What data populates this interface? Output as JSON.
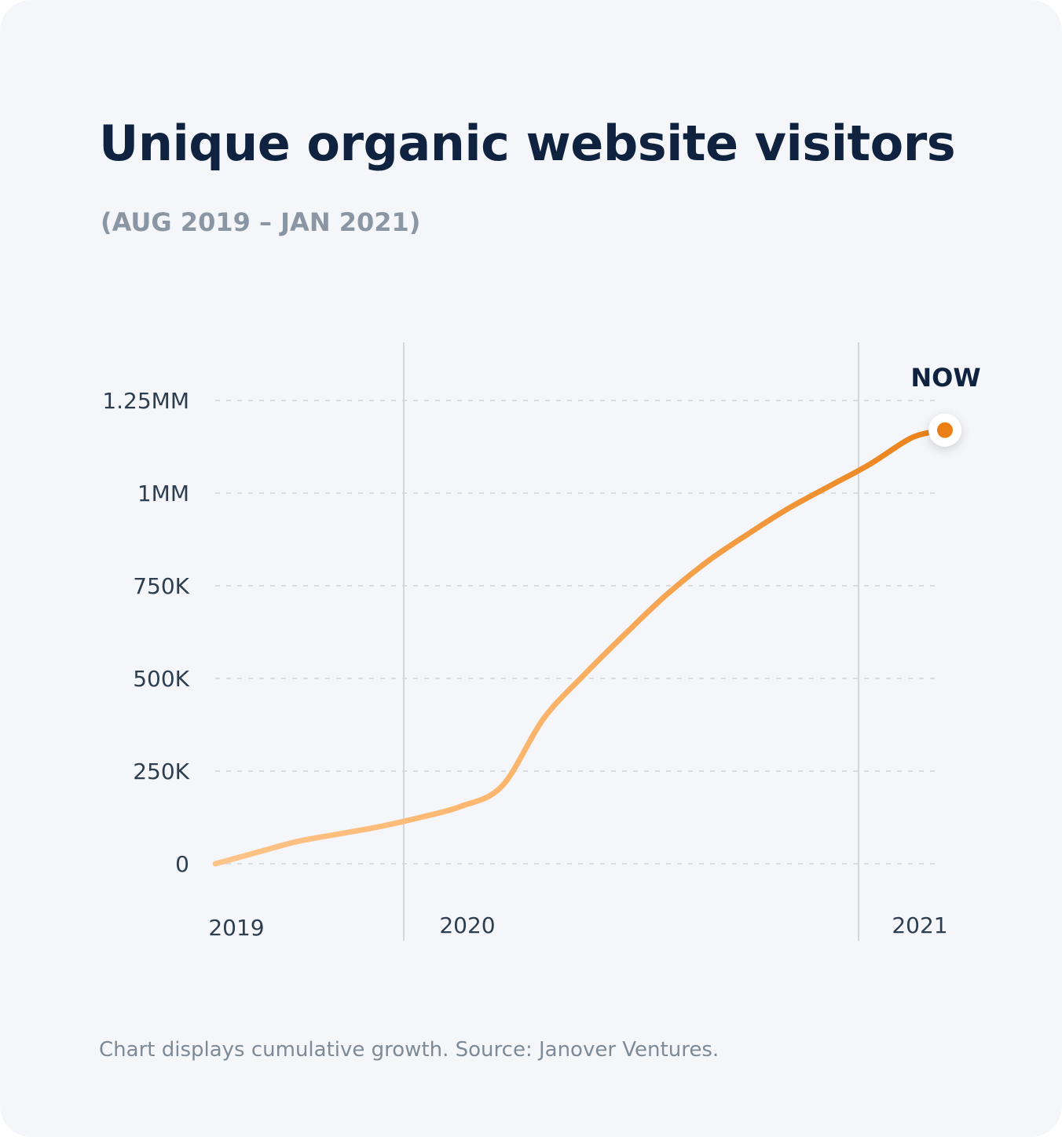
{
  "header": {
    "title": "Unique organic website visitors",
    "subtitle": "(AUG 2019 – JAN 2021)"
  },
  "footer": {
    "note": "Chart displays cumulative growth. Source: Janover Ventures."
  },
  "colors": {
    "background": "#f5f6fa",
    "title": "#0f2340",
    "subtitle": "#8a96a3",
    "line_start": "#fec48a",
    "line_end": "#ea8015",
    "grid": "#d9dde3",
    "marker": "#ea8015"
  },
  "chart_data": {
    "type": "line",
    "title": "Unique organic website visitors",
    "subtitle": "(AUG 2019 – JAN 2021)",
    "xlabel": "",
    "ylabel": "",
    "x_unit": "months since Aug 2019",
    "xlim": [
      0,
      17.8
    ],
    "ylim": [
      0,
      1250000
    ],
    "y_ticks": [
      {
        "value": 0,
        "label": "0"
      },
      {
        "value": 250000,
        "label": "250K"
      },
      {
        "value": 500000,
        "label": "500K"
      },
      {
        "value": 750000,
        "label": "750K"
      },
      {
        "value": 1000000,
        "label": "1MM"
      },
      {
        "value": 1250000,
        "label": "1.25MM"
      }
    ],
    "x_ticks": [
      {
        "value": 0,
        "label": "2019",
        "divider": false
      },
      {
        "value": 5,
        "label": "2020",
        "divider": true
      },
      {
        "value": 17,
        "label": "2021",
        "divider": true
      }
    ],
    "grid": {
      "horizontal": true,
      "style": "dashed"
    },
    "series": [
      {
        "name": "Unique organic website visitors",
        "x": [
          0,
          1,
          2,
          3,
          4,
          5,
          6,
          7,
          8,
          9,
          10,
          11,
          12,
          13,
          14,
          15,
          16,
          17,
          17.8
        ],
        "values": [
          0,
          30000,
          60000,
          80000,
          100000,
          125000,
          155000,
          210000,
          390000,
          510000,
          620000,
          725000,
          815000,
          890000,
          960000,
          1020000,
          1080000,
          1150000,
          1170000
        ]
      }
    ],
    "annotation": {
      "label": "NOW",
      "x": 17.8,
      "y": 1170000
    }
  }
}
